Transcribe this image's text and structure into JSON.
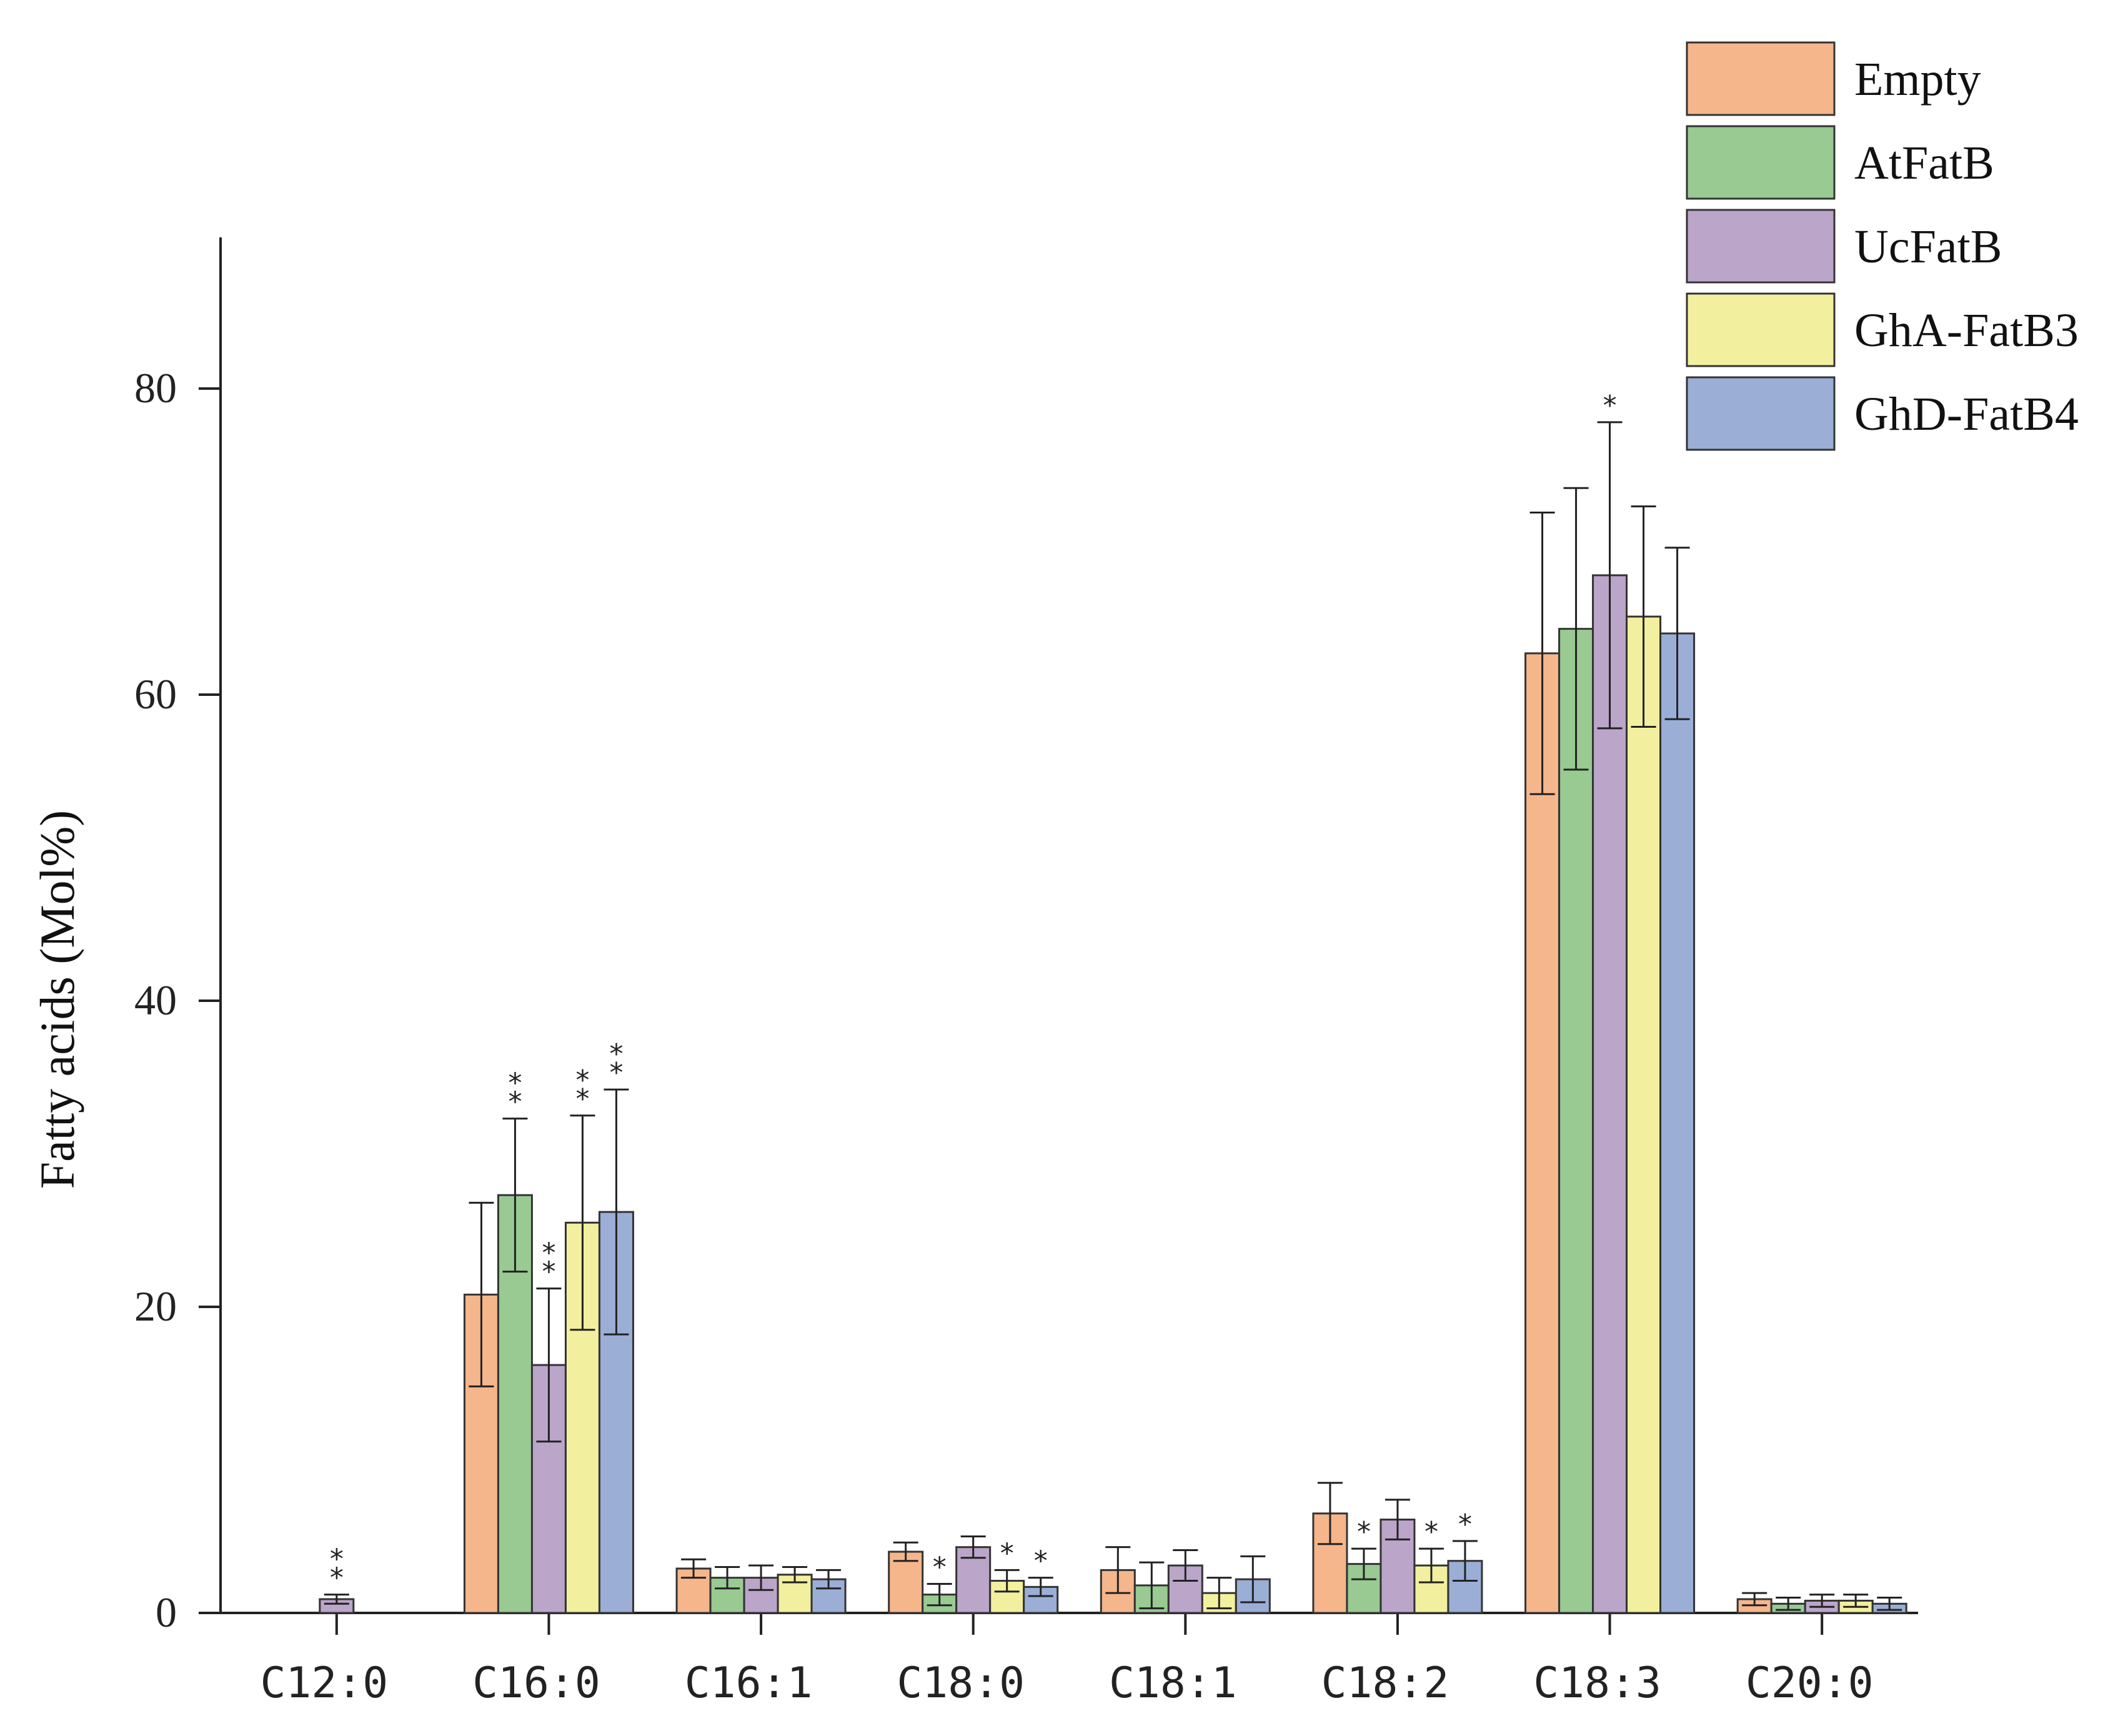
{
  "chart_data": {
    "type": "bar",
    "ylabel": "Fatty acids (Mol%)",
    "ylim": [
      0,
      90
    ],
    "yticks": [
      "0",
      "20",
      "40",
      "60",
      "80"
    ],
    "categories": [
      "C12:0",
      "C16:0",
      "C16:1",
      "C18:0",
      "C18:1",
      "C18:2",
      "C18:3",
      "C20:0"
    ],
    "legend_position": "top-right",
    "series": [
      {
        "name": "Empty",
        "color": "#F5B68C",
        "values": [
          0,
          20.8,
          2.9,
          4.0,
          2.8,
          6.5,
          62.7,
          0.9
        ],
        "errors": [
          0,
          6.0,
          0.6,
          0.6,
          1.5,
          2.0,
          9.2,
          0.4
        ],
        "sig": [
          "",
          "",
          "",
          "",
          "",
          "",
          "",
          ""
        ]
      },
      {
        "name": "AtFatB",
        "color": "#98CA92",
        "values": [
          0,
          27.3,
          2.3,
          1.2,
          1.8,
          3.2,
          64.3,
          0.6
        ],
        "errors": [
          0,
          5.0,
          0.7,
          0.7,
          1.5,
          1.0,
          9.2,
          0.4
        ],
        "sig": [
          "",
          "**",
          "",
          "*",
          "",
          "*",
          "",
          ""
        ]
      },
      {
        "name": "UcFatB",
        "color": "#BBA5C9",
        "values": [
          0.9,
          16.2,
          2.3,
          4.3,
          3.1,
          6.1,
          67.8,
          0.8
        ],
        "errors": [
          0.3,
          5.0,
          0.8,
          0.7,
          1.0,
          1.3,
          10.0,
          0.4
        ],
        "sig": [
          "**",
          "**",
          "",
          "",
          "",
          "",
          "*",
          ""
        ]
      },
      {
        "name": "GhA-FatB3",
        "color": "#F2F09E",
        "values": [
          0,
          25.5,
          2.5,
          2.1,
          1.3,
          3.1,
          65.1,
          0.8
        ],
        "errors": [
          0,
          7.0,
          0.5,
          0.7,
          1.0,
          1.1,
          7.2,
          0.4
        ],
        "sig": [
          "",
          "**",
          "",
          "*",
          "",
          "*",
          "",
          ""
        ]
      },
      {
        "name": "GhD-FatB4",
        "color": "#9BAED6",
        "values": [
          0,
          26.2,
          2.2,
          1.7,
          2.2,
          3.4,
          64.0,
          0.6
        ],
        "errors": [
          0,
          8.0,
          0.6,
          0.6,
          1.5,
          1.3,
          5.6,
          0.4
        ],
        "sig": [
          "",
          "**",
          "",
          "*",
          "",
          "*",
          "",
          ""
        ]
      }
    ]
  }
}
